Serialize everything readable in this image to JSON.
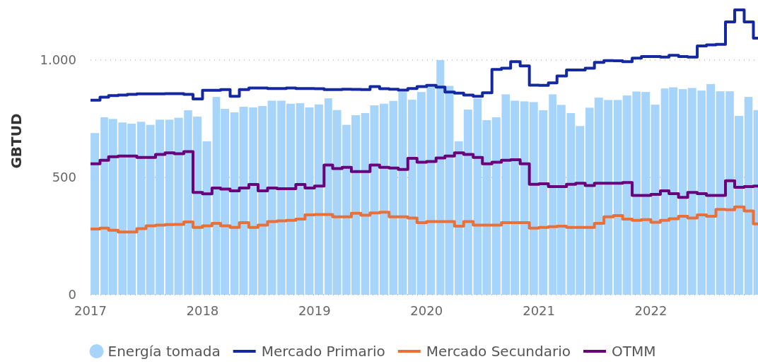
{
  "chart_data": {
    "type": "bar",
    "ylabel": "GBTUD",
    "x": [
      "2017-01",
      "2017-02",
      "2017-03",
      "2017-04",
      "2017-05",
      "2017-06",
      "2017-07",
      "2017-08",
      "2017-09",
      "2017-10",
      "2017-11",
      "2017-12",
      "2018-01",
      "2018-02",
      "2018-03",
      "2018-04",
      "2018-05",
      "2018-06",
      "2018-07",
      "2018-08",
      "2018-09",
      "2018-10",
      "2018-11",
      "2018-12",
      "2019-01",
      "2019-02",
      "2019-03",
      "2019-04",
      "2019-05",
      "2019-06",
      "2019-07",
      "2019-08",
      "2019-09",
      "2019-10",
      "2019-11",
      "2019-12",
      "2020-01",
      "2020-02",
      "2020-03",
      "2020-04",
      "2020-05",
      "2020-06",
      "2020-07",
      "2020-08",
      "2020-09",
      "2020-10",
      "2020-11",
      "2020-12",
      "2021-01",
      "2021-02",
      "2021-03",
      "2021-04",
      "2021-05",
      "2021-06",
      "2021-07",
      "2021-08",
      "2021-09",
      "2021-10",
      "2021-11",
      "2021-12",
      "2022-01",
      "2022-02",
      "2022-03",
      "2022-04",
      "2022-05",
      "2022-06",
      "2022-07",
      "2022-08",
      "2022-09",
      "2022-10",
      "2022-11",
      "2022-12"
    ],
    "series": [
      {
        "name": "Energía tomada",
        "x": [
          "2017-01-15",
          "2017-02-15",
          "2017-03-15",
          "2017-04-15",
          "2017-05-15",
          "2017-06-15",
          "2017-07-15",
          "2017-08-15",
          "2017-09-15",
          "2017-10-15",
          "2017-11-15",
          "2017-12-15",
          "2018-01-15",
          "2018-02-15",
          "2018-03-15",
          "2018-04-15",
          "2018-05-15",
          "2018-06-15",
          "2018-07-15",
          "2018-08-15",
          "2018-09-15",
          "2018-10-15",
          "2018-11-15",
          "2018-12-15",
          "2019-01-15",
          "2019-02-15",
          "2019-03-15",
          "2019-04-15",
          "2019-05-15",
          "2019-06-15",
          "2019-07-15",
          "2019-08-15",
          "2019-09-15",
          "2019-10-15",
          "2019-11-15",
          "2019-12-15",
          "2020-01-15",
          "2020-02-15",
          "2020-03-15",
          "2020-04-15",
          "2020-05-15",
          "2020-06-15",
          "2020-07-15",
          "2020-08-15",
          "2020-09-15",
          "2020-10-15",
          "2020-11-15",
          "2020-12-15",
          "2021-01-15",
          "2021-02-15",
          "2021-03-15",
          "2021-04-15",
          "2021-05-15",
          "2021-06-15",
          "2021-07-15",
          "2021-08-15",
          "2021-09-15",
          "2021-10-15",
          "2021-11-15",
          "2021-12-15",
          "2022-01-15",
          "2022-02-15",
          "2022-03-15",
          "2022-04-15",
          "2022-05-15",
          "2022-06-15",
          "2022-07-15",
          "2022-08-15",
          "2022-09-15",
          "2022-10-15",
          "2022-11-15",
          "2022-12-15"
        ],
        "color": "#a6d4fa",
        "values": [
          689,
          756,
          749,
          734,
          729,
          737,
          724,
          746,
          746,
          754,
          786,
          759,
          654,
          843,
          792,
          777,
          801,
          798,
          804,
          827,
          827,
          814,
          816,
          798,
          811,
          837,
          787,
          724,
          765,
          774,
          807,
          814,
          826,
          864,
          831,
          864,
          885,
          1000,
          890,
          654,
          789,
          836,
          744,
          756,
          854,
          827,
          824,
          821,
          786,
          854,
          809,
          774,
          719,
          797,
          840,
          830,
          830,
          849,
          866,
          864,
          810,
          879,
          884,
          876,
          881,
          870,
          898,
          867,
          867,
          762,
          843,
          787
        ]
      },
      {
        "name": "Mercado Primario",
        "type": "step",
        "color": "#1428a0",
        "values": [
          829,
          842,
          849,
          851,
          854,
          856,
          856,
          856,
          857,
          857,
          854,
          834,
          871,
          871,
          874,
          846,
          874,
          881,
          881,
          879,
          879,
          881,
          879,
          879,
          878,
          874,
          874,
          876,
          875,
          874,
          887,
          878,
          876,
          872,
          879,
          887,
          892,
          885,
          864,
          859,
          851,
          846,
          861,
          960,
          965,
          993,
          975,
          893,
          892,
          903,
          932,
          958,
          958,
          965,
          990,
          998,
          997,
          993,
          1008,
          1015,
          1015,
          1013,
          1020,
          1015,
          1013,
          1060,
          1065,
          1067,
          1163,
          1214,
          1163,
          1093
        ]
      },
      {
        "name": "Mercado Secundario",
        "type": "step",
        "color": "#e8713a",
        "values": [
          280,
          284,
          275,
          267,
          267,
          282,
          294,
          297,
          299,
          300,
          310,
          287,
          294,
          304,
          294,
          287,
          307,
          287,
          297,
          312,
          315,
          317,
          322,
          340,
          342,
          342,
          332,
          332,
          347,
          339,
          349,
          352,
          332,
          332,
          327,
          307,
          312,
          312,
          312,
          292,
          312,
          297,
          297,
          297,
          307,
          307,
          307,
          284,
          287,
          290,
          292,
          287,
          287,
          287,
          304,
          332,
          337,
          322,
          317,
          320,
          309,
          317,
          324,
          334,
          327,
          340,
          334,
          364,
          362,
          374,
          357,
          302
        ]
      },
      {
        "name": "OTMM",
        "type": "step",
        "color": "#6b007b",
        "values": [
          558,
          573,
          588,
          591,
          591,
          585,
          585,
          598,
          605,
          601,
          610,
          436,
          430,
          455,
          450,
          443,
          455,
          470,
          443,
          455,
          452,
          452,
          470,
          455,
          463,
          553,
          538,
          543,
          525,
          525,
          553,
          543,
          540,
          534,
          581,
          565,
          568,
          583,
          591,
          605,
          598,
          585,
          558,
          565,
          573,
          575,
          558,
          471,
          473,
          461,
          461,
          471,
          475,
          465,
          475,
          475,
          475,
          478,
          423,
          423,
          428,
          443,
          431,
          415,
          436,
          431,
          423,
          423,
          486,
          458,
          461,
          463
        ]
      }
    ],
    "xlim": [
      "2017-01-01",
      "2022-12-16"
    ],
    "xticks": [
      {
        "value": "2017-01",
        "label": "2017"
      },
      {
        "value": "2018-01",
        "label": "2018"
      },
      {
        "value": "2019-01",
        "label": "2019"
      },
      {
        "value": "2020-01",
        "label": "2020"
      },
      {
        "value": "2021-01",
        "label": "2021"
      },
      {
        "value": "2022-01",
        "label": "2022"
      }
    ],
    "ylim": [
      0,
      1250
    ],
    "yticks": [
      0,
      500,
      {
        "value": 1000,
        "label": "1.000"
      }
    ],
    "grid": "y",
    "legend": "bottom",
    "line_style": "solid"
  }
}
